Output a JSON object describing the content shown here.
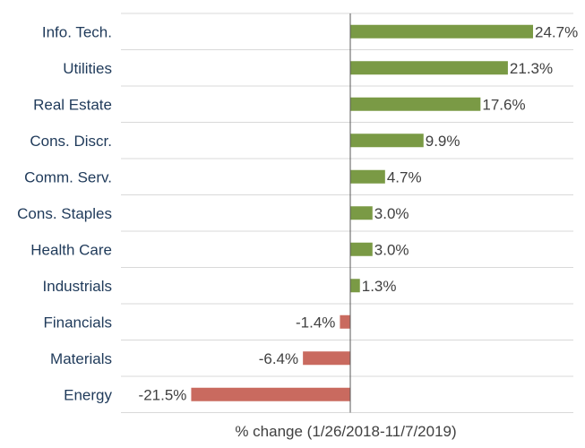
{
  "chart_data": {
    "type": "bar",
    "orientation": "horizontal",
    "categories": [
      "Info. Tech.",
      "Utilities",
      "Real Estate",
      "Cons. Discr.",
      "Comm. Serv.",
      "Cons. Staples",
      "Health Care",
      "Industrials",
      "Financials",
      "Materials",
      "Energy"
    ],
    "values": [
      24.7,
      21.3,
      17.6,
      9.9,
      4.7,
      3.0,
      3.0,
      1.3,
      -1.4,
      -6.4,
      -21.5
    ],
    "value_labels": [
      "24.7%",
      "21.3%",
      "17.6%",
      "9.9%",
      "4.7%",
      "3.0%",
      "3.0%",
      "1.3%",
      "-1.4%",
      "-6.4%",
      "-21.5%"
    ],
    "xlabel": "% change (1/26/2018-11/7/2019)",
    "ylabel": "",
    "xlim": [
      -24,
      24.7
    ],
    "grid": "horizontal",
    "colors": {
      "positive": "#7a9a45",
      "negative": "#c96a5f",
      "grid": "#d9d9d9",
      "axis": "#595959"
    }
  }
}
